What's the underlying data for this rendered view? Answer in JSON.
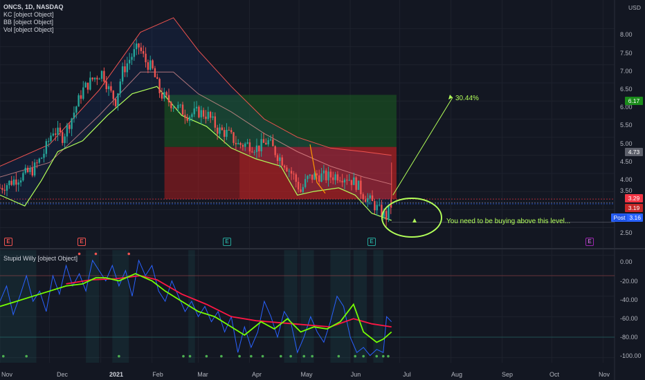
{
  "legend": {
    "ticker": "ONCS, 1D, NASDAQ",
    "kc": "KC [object Object]",
    "bb": "BB [object Object]",
    "vol": "Vol [object Object]",
    "osc": "Stupid Willy [object Object]"
  },
  "currency": "USD",
  "price_axis": {
    "ticks": [
      "8.00",
      "7.50",
      "7.00",
      "6.50",
      "6.00",
      "5.50",
      "5.00",
      "4.50",
      "4.00",
      "3.50",
      "2.50"
    ]
  },
  "price_tags": {
    "target": "6.17",
    "entry": "4.73",
    "stop_a": "3.29",
    "stop_b": "3.19",
    "post_label": "Post",
    "post_value": "3.16"
  },
  "osc_axis": {
    "ticks": [
      "0.00",
      "-20.00",
      "-40.00",
      "-60.00",
      "-80.00",
      "-100.00"
    ]
  },
  "time_axis": {
    "labels": [
      "Nov",
      "Dec",
      "2021",
      "Feb",
      "Mar",
      "Apr",
      "May",
      "Jun",
      "Jul",
      "Aug",
      "Sep",
      "Oct",
      "Nov"
    ]
  },
  "earnings_badge": "E",
  "annotations": {
    "gain": "30.44%",
    "note": "You need to be buying above this level..."
  },
  "colors": {
    "background": "#131722",
    "up": "#26a69a",
    "down": "#ef5350",
    "kc": "#ef5350",
    "bb_lower": "#b2ff59",
    "annotation": "#b2ff59",
    "target_zone": "#1b5e20",
    "stop_zone": "#b71c1c",
    "osc_fast": "#2962ff",
    "osc_signal_green": "#76ff03",
    "osc_signal_red": "#ff1744"
  },
  "chart_data": {
    "type": "candlestick",
    "price_range": [
      2.3,
      8.6
    ],
    "osc_range": [
      -105,
      5
    ],
    "x_range_days": [
      0,
      372
    ],
    "month_days": [
      0,
      30,
      61,
      92,
      120,
      151,
      181,
      212,
      242,
      273,
      304,
      334,
      365
    ],
    "close_series": [
      [
        0,
        3.6
      ],
      [
        8,
        3.8
      ],
      [
        14,
        3.95
      ],
      [
        20,
        4.1
      ],
      [
        26,
        4.5
      ],
      [
        32,
        5.2
      ],
      [
        38,
        5.0
      ],
      [
        44,
        5.6
      ],
      [
        50,
        6.3
      ],
      [
        56,
        6.6
      ],
      [
        62,
        6.8
      ],
      [
        66,
        6.3
      ],
      [
        70,
        6.0
      ],
      [
        74,
        6.8
      ],
      [
        79,
        7.2
      ],
      [
        84,
        7.5
      ],
      [
        88,
        7.1
      ],
      [
        92,
        6.9
      ],
      [
        97,
        6.2
      ],
      [
        102,
        6.0
      ],
      [
        108,
        5.8
      ],
      [
        114,
        5.6
      ],
      [
        120,
        5.7
      ],
      [
        126,
        5.6
      ],
      [
        132,
        5.2
      ],
      [
        138,
        5.1
      ],
      [
        144,
        4.8
      ],
      [
        150,
        4.8
      ],
      [
        156,
        4.7
      ],
      [
        162,
        4.9
      ],
      [
        168,
        4.5
      ],
      [
        172,
        4.3
      ],
      [
        178,
        3.9
      ],
      [
        182,
        3.5
      ],
      [
        186,
        3.85
      ],
      [
        192,
        3.95
      ],
      [
        198,
        3.9
      ],
      [
        204,
        3.95
      ],
      [
        210,
        3.9
      ],
      [
        216,
        3.7
      ],
      [
        220,
        3.4
      ],
      [
        226,
        3.15
      ],
      [
        230,
        2.95
      ],
      [
        234,
        2.8
      ],
      [
        237,
        3.19
      ]
    ],
    "keltner_upper": [
      [
        0,
        4.2
      ],
      [
        30,
        4.8
      ],
      [
        60,
        6.3
      ],
      [
        85,
        7.9
      ],
      [
        105,
        8.3
      ],
      [
        120,
        7.4
      ],
      [
        140,
        6.4
      ],
      [
        160,
        5.5
      ],
      [
        180,
        5.0
      ],
      [
        200,
        4.7
      ],
      [
        220,
        4.6
      ],
      [
        237,
        4.5
      ]
    ],
    "keltner_mid": [
      [
        0,
        3.9
      ],
      [
        30,
        4.3
      ],
      [
        60,
        5.6
      ],
      [
        85,
        6.8
      ],
      [
        105,
        6.8
      ],
      [
        120,
        6.2
      ],
      [
        140,
        5.7
      ],
      [
        160,
        5.1
      ],
      [
        180,
        4.6
      ],
      [
        200,
        4.2
      ],
      [
        220,
        3.9
      ],
      [
        237,
        3.7
      ]
    ],
    "bollinger_lower": [
      [
        0,
        3.4
      ],
      [
        15,
        3.1
      ],
      [
        25,
        3.8
      ],
      [
        35,
        4.6
      ],
      [
        50,
        4.9
      ],
      [
        65,
        5.6
      ],
      [
        80,
        6.2
      ],
      [
        95,
        6.4
      ],
      [
        110,
        5.6
      ],
      [
        125,
        5.3
      ],
      [
        140,
        4.7
      ],
      [
        155,
        4.4
      ],
      [
        170,
        4.2
      ],
      [
        180,
        3.4
      ],
      [
        190,
        3.5
      ],
      [
        205,
        3.6
      ],
      [
        215,
        3.4
      ],
      [
        225,
        2.9
      ],
      [
        237,
        2.7
      ]
    ],
    "trade_setup": {
      "target": 6.17,
      "entry": 4.73,
      "stop": 3.29,
      "current": 3.19,
      "post_market": 3.16,
      "projected_gain_pct": 30.44,
      "zone_day_range": [
        92,
        240
      ]
    },
    "earnings_days": [
      2,
      41,
      126,
      197,
      322
    ],
    "osc_fast": [
      [
        0,
        -45
      ],
      [
        4,
        -30
      ],
      [
        8,
        -58
      ],
      [
        12,
        -40
      ],
      [
        16,
        -20
      ],
      [
        20,
        -45
      ],
      [
        24,
        -35
      ],
      [
        28,
        -55
      ],
      [
        32,
        -20
      ],
      [
        36,
        -38
      ],
      [
        40,
        -10
      ],
      [
        44,
        -30
      ],
      [
        48,
        -18
      ],
      [
        52,
        -35
      ],
      [
        56,
        -5
      ],
      [
        60,
        -15
      ],
      [
        64,
        -25
      ],
      [
        68,
        -10
      ],
      [
        72,
        -30
      ],
      [
        76,
        -15
      ],
      [
        80,
        -40
      ],
      [
        84,
        -5
      ],
      [
        88,
        -20
      ],
      [
        92,
        -10
      ],
      [
        96,
        -35
      ],
      [
        100,
        -45
      ],
      [
        104,
        -25
      ],
      [
        108,
        -40
      ],
      [
        112,
        -55
      ],
      [
        116,
        -45
      ],
      [
        120,
        -60
      ],
      [
        124,
        -50
      ],
      [
        128,
        -65
      ],
      [
        132,
        -55
      ],
      [
        136,
        -75
      ],
      [
        140,
        -60
      ],
      [
        144,
        -95
      ],
      [
        148,
        -70
      ],
      [
        152,
        -90
      ],
      [
        156,
        -75
      ],
      [
        160,
        -45
      ],
      [
        164,
        -60
      ],
      [
        168,
        -80
      ],
      [
        172,
        -55
      ],
      [
        176,
        -65
      ],
      [
        180,
        -95
      ],
      [
        184,
        -80
      ],
      [
        188,
        -60
      ],
      [
        192,
        -75
      ],
      [
        196,
        -85
      ],
      [
        200,
        -65
      ],
      [
        204,
        -40
      ],
      [
        208,
        -50
      ],
      [
        212,
        -80
      ],
      [
        216,
        -95
      ],
      [
        220,
        -90
      ],
      [
        224,
        -98
      ],
      [
        228,
        -92
      ],
      [
        232,
        -95
      ],
      [
        234,
        -60
      ],
      [
        237,
        -65
      ]
    ],
    "osc_green": [
      [
        0,
        -50
      ],
      [
        10,
        -45
      ],
      [
        20,
        -40
      ],
      [
        30,
        -35
      ],
      [
        40,
        -30
      ],
      [
        50,
        -28
      ],
      [
        58,
        -22
      ],
      [
        64,
        -22
      ],
      [
        72,
        -25
      ],
      [
        82,
        -18
      ],
      [
        92,
        -25
      ],
      [
        100,
        -35
      ],
      [
        110,
        -45
      ],
      [
        120,
        -55
      ],
      [
        130,
        -60
      ],
      [
        140,
        -70
      ],
      [
        148,
        -78
      ],
      [
        158,
        -65
      ],
      [
        166,
        -72
      ],
      [
        174,
        -62
      ],
      [
        182,
        -75
      ],
      [
        190,
        -70
      ],
      [
        198,
        -72
      ],
      [
        206,
        -65
      ],
      [
        214,
        -48
      ],
      [
        220,
        -75
      ],
      [
        228,
        -85
      ],
      [
        232,
        -82
      ],
      [
        237,
        -75
      ]
    ],
    "osc_red": [
      [
        40,
        -28
      ],
      [
        55,
        -24
      ],
      [
        70,
        -23
      ],
      [
        85,
        -20
      ],
      [
        95,
        -24
      ],
      [
        110,
        -38
      ],
      [
        125,
        -48
      ],
      [
        140,
        -60
      ],
      [
        155,
        -64
      ],
      [
        170,
        -66
      ],
      [
        185,
        -68
      ],
      [
        200,
        -70
      ],
      [
        214,
        -62
      ],
      [
        225,
        -67
      ],
      [
        237,
        -70
      ]
    ],
    "osc_markers": [
      [
        2,
        -100
      ],
      [
        16,
        -100
      ],
      [
        72,
        -100
      ],
      [
        111,
        -100
      ],
      [
        115,
        -100
      ],
      [
        125,
        -100
      ],
      [
        134,
        -100
      ],
      [
        145,
        -100
      ],
      [
        152,
        -100
      ],
      [
        159,
        -100
      ],
      [
        170,
        -100
      ],
      [
        176,
        -100
      ],
      [
        184,
        -100
      ],
      [
        189,
        -100
      ],
      [
        205,
        -100
      ],
      [
        215,
        -100
      ],
      [
        220,
        -100
      ],
      [
        228,
        -100
      ],
      [
        232,
        -100
      ],
      [
        235,
        -100
      ]
    ],
    "osc_top_markers": [
      [
        48,
        0
      ],
      [
        58,
        0
      ],
      [
        78,
        0
      ]
    ]
  }
}
